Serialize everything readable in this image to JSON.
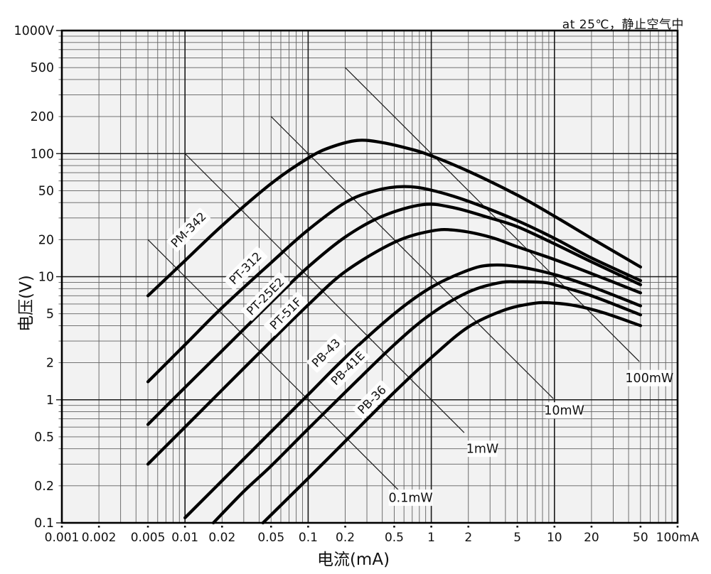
{
  "note": "at 25℃，静止空气中",
  "chart_data": {
    "type": "line",
    "scale": "log-log",
    "grid": true,
    "condition_note": "at 25℃，静止空气中",
    "x_axis": {
      "label": "电流(mA)",
      "unit": "mA",
      "min": 0.001,
      "max": 100,
      "ticks": [
        {
          "v": 0.001,
          "label": "0.001"
        },
        {
          "v": 0.002,
          "label": "0.002"
        },
        {
          "v": 0.005,
          "label": "0.005"
        },
        {
          "v": 0.01,
          "label": "0.01"
        },
        {
          "v": 0.02,
          "label": "0.02"
        },
        {
          "v": 0.05,
          "label": "0.05"
        },
        {
          "v": 0.1,
          "label": "0.1"
        },
        {
          "v": 0.2,
          "label": "0.2"
        },
        {
          "v": 0.5,
          "label": "0.5"
        },
        {
          "v": 1,
          "label": "1"
        },
        {
          "v": 2,
          "label": "2"
        },
        {
          "v": 5,
          "label": "5"
        },
        {
          "v": 10,
          "label": "10"
        },
        {
          "v": 20,
          "label": "20"
        },
        {
          "v": 50,
          "label": "50"
        },
        {
          "v": 100,
          "label": "100mA"
        }
      ]
    },
    "y_axis": {
      "label": "电压(V)",
      "unit": "V",
      "min": 0.1,
      "max": 1000,
      "ticks": [
        {
          "v": 1000,
          "label": "1000V"
        },
        {
          "v": 500,
          "label": "500"
        },
        {
          "v": 200,
          "label": "200"
        },
        {
          "v": 100,
          "label": "100"
        },
        {
          "v": 50,
          "label": "50"
        },
        {
          "v": 20,
          "label": "20"
        },
        {
          "v": 10,
          "label": "10"
        },
        {
          "v": 5,
          "label": "5"
        },
        {
          "v": 2,
          "label": "2"
        },
        {
          "v": 1,
          "label": "1"
        },
        {
          "v": 0.5,
          "label": "0.5"
        },
        {
          "v": 0.2,
          "label": "0.2"
        },
        {
          "v": 0.1,
          "label": "0.1"
        }
      ]
    },
    "series": [
      {
        "name": "PM-342",
        "label_at": [
          0.0107,
          24
        ],
        "points": [
          [
            0.005,
            7
          ],
          [
            0.01,
            13.5
          ],
          [
            0.02,
            26
          ],
          [
            0.05,
            57
          ],
          [
            0.1,
            92
          ],
          [
            0.15,
            112
          ],
          [
            0.25,
            128
          ],
          [
            0.4,
            123
          ],
          [
            0.7,
            108
          ],
          [
            1,
            96
          ],
          [
            2,
            72
          ],
          [
            5,
            46
          ],
          [
            10,
            31
          ],
          [
            20,
            20.5
          ],
          [
            50,
            12
          ]
        ]
      },
      {
        "name": "PT-312",
        "label_at": [
          0.031,
          11.7
        ],
        "points": [
          [
            0.005,
            1.4
          ],
          [
            0.01,
            2.8
          ],
          [
            0.02,
            5.6
          ],
          [
            0.05,
            13
          ],
          [
            0.1,
            24
          ],
          [
            0.2,
            40
          ],
          [
            0.35,
            50
          ],
          [
            0.6,
            54
          ],
          [
            1,
            50.5
          ],
          [
            2,
            41
          ],
          [
            5,
            28.5
          ],
          [
            10,
            20.5
          ],
          [
            20,
            14.2
          ],
          [
            50,
            9.3
          ]
        ]
      },
      {
        "name": "PT-25E2",
        "label_at": [
          0.045,
          6.9
        ],
        "points": [
          [
            0.005,
            0.63
          ],
          [
            0.01,
            1.26
          ],
          [
            0.02,
            2.5
          ],
          [
            0.05,
            6.2
          ],
          [
            0.1,
            12
          ],
          [
            0.2,
            21
          ],
          [
            0.4,
            31
          ],
          [
            0.85,
            38.5
          ],
          [
            1.5,
            36.5
          ],
          [
            3,
            30
          ],
          [
            5,
            25.5
          ],
          [
            10,
            18.5
          ],
          [
            20,
            13.2
          ],
          [
            50,
            8.6
          ]
        ]
      },
      {
        "name": "PT-51F",
        "label_at": [
          0.066,
          5.0
        ],
        "points": [
          [
            0.005,
            0.3
          ],
          [
            0.01,
            0.6
          ],
          [
            0.02,
            1.2
          ],
          [
            0.05,
            3
          ],
          [
            0.1,
            5.9
          ],
          [
            0.2,
            11
          ],
          [
            0.5,
            19
          ],
          [
            1,
            23.5
          ],
          [
            1.6,
            23.8
          ],
          [
            3,
            21
          ],
          [
            5,
            17.5
          ],
          [
            10,
            13.8
          ],
          [
            20,
            10.6
          ],
          [
            50,
            7.4
          ]
        ]
      },
      {
        "name": "PB-43",
        "label_at": [
          0.14,
          2.4
        ],
        "points": [
          [
            0.01,
            0.11
          ],
          [
            0.02,
            0.22
          ],
          [
            0.05,
            0.55
          ],
          [
            0.1,
            1.1
          ],
          [
            0.2,
            2.2
          ],
          [
            0.5,
            5
          ],
          [
            1,
            8.2
          ],
          [
            2,
            11.3
          ],
          [
            3,
            12.4
          ],
          [
            5,
            12.1
          ],
          [
            10,
            10.4
          ],
          [
            20,
            8.3
          ],
          [
            50,
            5.8
          ]
        ]
      },
      {
        "name": "PB-41E",
        "label_at": [
          0.21,
          1.8
        ],
        "points": [
          [
            0.017,
            0.1
          ],
          [
            0.03,
            0.18
          ],
          [
            0.05,
            0.29
          ],
          [
            0.1,
            0.58
          ],
          [
            0.2,
            1.15
          ],
          [
            0.5,
            2.8
          ],
          [
            1,
            5
          ],
          [
            2,
            7.5
          ],
          [
            3.5,
            8.9
          ],
          [
            5,
            9.1
          ],
          [
            8,
            9
          ],
          [
            10,
            8.6
          ],
          [
            20,
            7
          ],
          [
            50,
            4.9
          ]
        ]
      },
      {
        "name": "PB-36",
        "label_at": [
          0.33,
          1.0
        ],
        "points": [
          [
            0.043,
            0.1
          ],
          [
            0.1,
            0.23
          ],
          [
            0.2,
            0.46
          ],
          [
            0.5,
            1.15
          ],
          [
            1,
            2.2
          ],
          [
            2,
            3.9
          ],
          [
            4,
            5.4
          ],
          [
            7,
            6.1
          ],
          [
            10,
            6.1
          ],
          [
            15,
            5.8
          ],
          [
            25,
            5.1
          ],
          [
            50,
            4
          ]
        ]
      }
    ],
    "power_lines": [
      {
        "label": "0.1mW",
        "mW": 0.1,
        "from_mA": 0.005,
        "to_mA": 0.62,
        "label_at": [
          0.68,
          0.16
        ]
      },
      {
        "label": "1mW",
        "mW": 1,
        "from_mA": 0.01,
        "to_mA": 1.85,
        "label_at": [
          2.6,
          0.4
        ]
      },
      {
        "label": "10mW",
        "mW": 10,
        "from_mA": 0.05,
        "to_mA": 9.8,
        "label_at": [
          12,
          0.82
        ]
      },
      {
        "label": "100mW",
        "mW": 100,
        "from_mA": 0.2,
        "to_mA": 49,
        "label_at": [
          59,
          1.5
        ]
      }
    ],
    "colors": {
      "curve": "#000000",
      "major_grid": "#1a1a1a",
      "minor_grid": "#606060",
      "plot_background": "#f2f2f2",
      "power_line": "#1a1a1a"
    }
  }
}
